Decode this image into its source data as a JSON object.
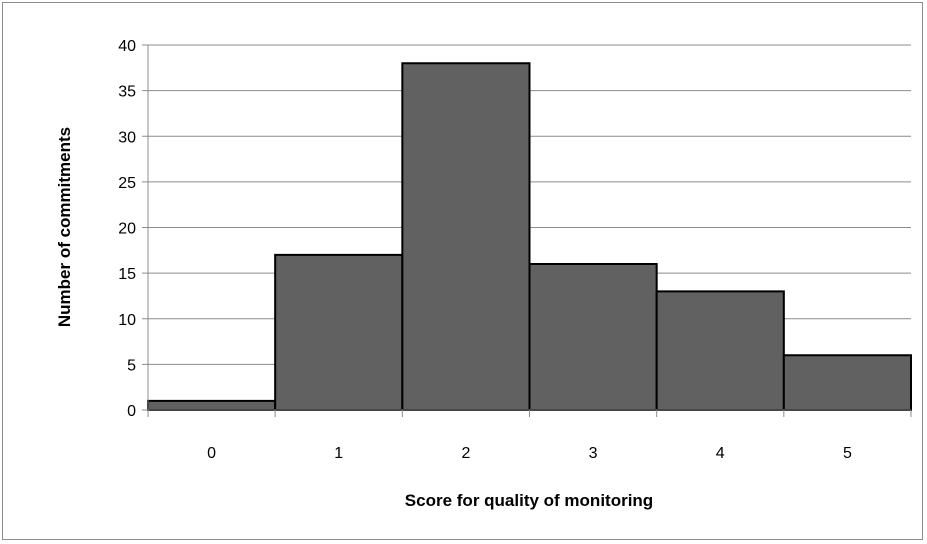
{
  "chart_data": {
    "type": "bar",
    "title": "",
    "xlabel": "Score for quality of monitoring",
    "ylabel": "Number of commitments",
    "categories": [
      "0",
      "1",
      "2",
      "3",
      "4",
      "5"
    ],
    "values": [
      1,
      17,
      38,
      16,
      13,
      6
    ],
    "ylim": [
      0,
      40
    ],
    "yticks": [
      "0",
      "5",
      "10",
      "15",
      "20",
      "25",
      "30",
      "35",
      "40"
    ],
    "grid": true,
    "legend": "none",
    "bar_color": "#616161",
    "bar_edge_color": "#000000",
    "grid_color": "#8c8c8c"
  }
}
